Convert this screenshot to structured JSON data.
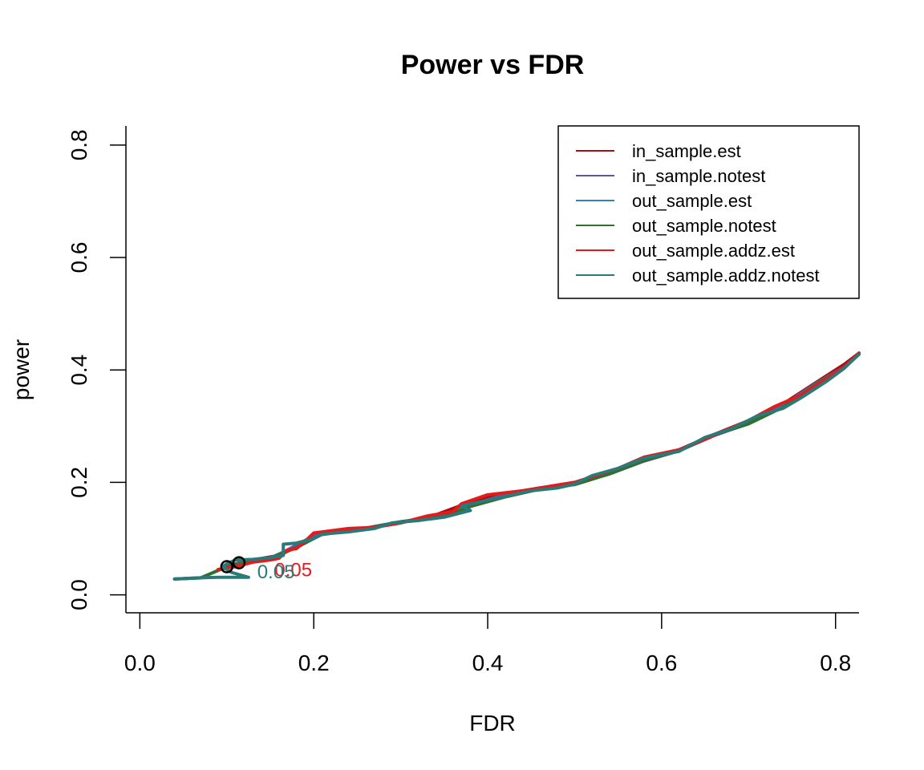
{
  "chart_data": {
    "type": "line",
    "title": "Power vs FDR",
    "xlabel": "FDR",
    "ylabel": "power",
    "xlim": [
      -0.016,
      0.827
    ],
    "ylim": [
      -0.032,
      0.834
    ],
    "x_ticks": [
      0.0,
      0.2,
      0.4,
      0.6,
      0.8
    ],
    "y_ticks": [
      0.0,
      0.2,
      0.4,
      0.6,
      0.8
    ],
    "x_tick_labels": [
      "0.0",
      "0.2",
      "0.4",
      "0.6",
      "0.8"
    ],
    "y_tick_labels": [
      "0.0",
      "0.2",
      "0.4",
      "0.6",
      "0.8"
    ],
    "legend_position": "top-right",
    "series": [
      {
        "name": "in_sample.est",
        "color": "#A50F15",
        "points": [
          [
            0.095,
            0.047
          ],
          [
            0.11,
            0.055
          ],
          [
            0.13,
            0.062
          ],
          [
            0.16,
            0.07
          ],
          [
            0.18,
            0.085
          ],
          [
            0.21,
            0.11
          ],
          [
            0.25,
            0.115
          ],
          [
            0.3,
            0.128
          ],
          [
            0.34,
            0.142
          ],
          [
            0.38,
            0.165
          ],
          [
            0.42,
            0.18
          ],
          [
            0.46,
            0.19
          ],
          [
            0.5,
            0.2
          ],
          [
            0.54,
            0.218
          ],
          [
            0.58,
            0.24
          ],
          [
            0.62,
            0.258
          ],
          [
            0.66,
            0.285
          ],
          [
            0.7,
            0.31
          ],
          [
            0.74,
            0.34
          ],
          [
            0.78,
            0.38
          ],
          [
            0.81,
            0.41
          ],
          [
            0.827,
            0.43
          ]
        ]
      },
      {
        "name": "in_sample.notest",
        "color": "#6A51A3",
        "points": [
          [
            0.097,
            0.05
          ],
          [
            0.12,
            0.058
          ],
          [
            0.15,
            0.065
          ],
          [
            0.17,
            0.08
          ],
          [
            0.2,
            0.105
          ],
          [
            0.25,
            0.116
          ],
          [
            0.3,
            0.13
          ],
          [
            0.35,
            0.14
          ],
          [
            0.38,
            0.16
          ],
          [
            0.42,
            0.178
          ],
          [
            0.46,
            0.19
          ],
          [
            0.5,
            0.198
          ],
          [
            0.54,
            0.215
          ],
          [
            0.58,
            0.238
          ],
          [
            0.62,
            0.256
          ],
          [
            0.66,
            0.283
          ],
          [
            0.7,
            0.305
          ],
          [
            0.74,
            0.338
          ],
          [
            0.78,
            0.378
          ],
          [
            0.81,
            0.405
          ],
          [
            0.827,
            0.428
          ]
        ]
      },
      {
        "name": "out_sample.est",
        "color": "#3182BD",
        "points": [
          [
            0.04,
            0.028
          ],
          [
            0.07,
            0.03
          ],
          [
            0.1,
            0.05
          ],
          [
            0.12,
            0.058
          ],
          [
            0.15,
            0.066
          ],
          [
            0.18,
            0.085
          ],
          [
            0.21,
            0.108
          ],
          [
            0.25,
            0.116
          ],
          [
            0.3,
            0.13
          ],
          [
            0.35,
            0.14
          ],
          [
            0.38,
            0.158
          ],
          [
            0.42,
            0.175
          ],
          [
            0.46,
            0.188
          ],
          [
            0.5,
            0.197
          ],
          [
            0.54,
            0.216
          ],
          [
            0.58,
            0.24
          ],
          [
            0.62,
            0.257
          ],
          [
            0.66,
            0.285
          ],
          [
            0.7,
            0.305
          ],
          [
            0.74,
            0.335
          ],
          [
            0.78,
            0.378
          ],
          [
            0.81,
            0.405
          ],
          [
            0.827,
            0.428
          ]
        ]
      },
      {
        "name": "out_sample.notest",
        "color": "#31702C",
        "points": [
          [
            0.04,
            0.028
          ],
          [
            0.07,
            0.03
          ],
          [
            0.1,
            0.05
          ],
          [
            0.12,
            0.057
          ],
          [
            0.15,
            0.065
          ],
          [
            0.18,
            0.084
          ],
          [
            0.21,
            0.108
          ],
          [
            0.25,
            0.115
          ],
          [
            0.3,
            0.13
          ],
          [
            0.35,
            0.139
          ],
          [
            0.38,
            0.157
          ],
          [
            0.42,
            0.174
          ],
          [
            0.46,
            0.188
          ],
          [
            0.5,
            0.196
          ],
          [
            0.54,
            0.215
          ],
          [
            0.58,
            0.239
          ],
          [
            0.62,
            0.256
          ],
          [
            0.66,
            0.284
          ],
          [
            0.7,
            0.304
          ],
          [
            0.74,
            0.334
          ],
          [
            0.78,
            0.377
          ],
          [
            0.81,
            0.404
          ],
          [
            0.827,
            0.428
          ]
        ]
      },
      {
        "name": "out_sample.addz.est",
        "color": "#E41A1C",
        "points": [
          [
            0.09,
            0.045
          ],
          [
            0.11,
            0.05
          ],
          [
            0.13,
            0.058
          ],
          [
            0.15,
            0.062
          ],
          [
            0.16,
            0.065
          ],
          [
            0.17,
            0.08
          ],
          [
            0.18,
            0.082
          ],
          [
            0.19,
            0.095
          ],
          [
            0.2,
            0.11
          ],
          [
            0.24,
            0.118
          ],
          [
            0.27,
            0.12
          ],
          [
            0.3,
            0.128
          ],
          [
            0.33,
            0.14
          ],
          [
            0.36,
            0.148
          ],
          [
            0.37,
            0.162
          ],
          [
            0.4,
            0.178
          ],
          [
            0.44,
            0.185
          ],
          [
            0.48,
            0.195
          ],
          [
            0.5,
            0.2
          ],
          [
            0.52,
            0.21
          ],
          [
            0.55,
            0.225
          ],
          [
            0.58,
            0.245
          ],
          [
            0.62,
            0.258
          ],
          [
            0.64,
            0.27
          ],
          [
            0.67,
            0.29
          ],
          [
            0.7,
            0.31
          ],
          [
            0.73,
            0.335
          ],
          [
            0.76,
            0.355
          ],
          [
            0.79,
            0.385
          ],
          [
            0.81,
            0.405
          ],
          [
            0.827,
            0.43
          ]
        ]
      },
      {
        "name": "out_sample.addz.notest",
        "color": "#2B7A7A",
        "points": [
          [
            0.04,
            0.028
          ],
          [
            0.065,
            0.03
          ],
          [
            0.09,
            0.031
          ],
          [
            0.125,
            0.031
          ],
          [
            0.105,
            0.04
          ],
          [
            0.095,
            0.05
          ],
          [
            0.1,
            0.055
          ],
          [
            0.11,
            0.062
          ],
          [
            0.13,
            0.063
          ],
          [
            0.15,
            0.066
          ],
          [
            0.165,
            0.07
          ],
          [
            0.165,
            0.09
          ],
          [
            0.18,
            0.092
          ],
          [
            0.2,
            0.1
          ],
          [
            0.21,
            0.108
          ],
          [
            0.24,
            0.112
          ],
          [
            0.27,
            0.118
          ],
          [
            0.29,
            0.128
          ],
          [
            0.32,
            0.132
          ],
          [
            0.35,
            0.138
          ],
          [
            0.38,
            0.15
          ],
          [
            0.37,
            0.158
          ],
          [
            0.39,
            0.165
          ],
          [
            0.42,
            0.175
          ],
          [
            0.45,
            0.185
          ],
          [
            0.48,
            0.19
          ],
          [
            0.5,
            0.197
          ],
          [
            0.52,
            0.212
          ],
          [
            0.55,
            0.225
          ],
          [
            0.58,
            0.243
          ],
          [
            0.62,
            0.255
          ],
          [
            0.65,
            0.28
          ],
          [
            0.68,
            0.295
          ],
          [
            0.71,
            0.318
          ],
          [
            0.74,
            0.332
          ],
          [
            0.76,
            0.35
          ],
          [
            0.79,
            0.38
          ],
          [
            0.81,
            0.403
          ],
          [
            0.827,
            0.428
          ]
        ]
      }
    ],
    "markers": [
      {
        "x": 0.1,
        "y": 0.05,
        "symbol": "circle",
        "color": "#000000"
      },
      {
        "x": 0.114,
        "y": 0.057,
        "symbol": "circle",
        "color": "#000000"
      }
    ],
    "annotations": [
      {
        "text": "0.05",
        "x": 0.155,
        "y": 0.046,
        "color": "#E41A1C"
      },
      {
        "text": "0.05",
        "x": 0.135,
        "y": 0.042,
        "color": "#2B7A7A"
      }
    ]
  }
}
